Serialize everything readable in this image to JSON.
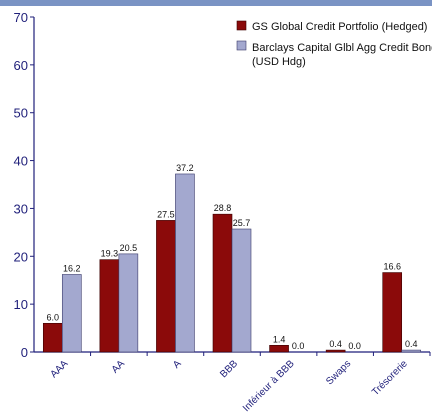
{
  "chart_data": {
    "type": "bar",
    "categories": [
      "AAA",
      "AA",
      "A",
      "BBB",
      "Inférieur à BBB",
      "Swaps",
      "Trésorerie"
    ],
    "series": [
      {
        "name": "GS Global Credit Portfolio (Hedged)",
        "color": "#8b0a0a",
        "values": [
          6.0,
          19.3,
          27.5,
          28.8,
          1.4,
          0.4,
          16.6
        ]
      },
      {
        "name": "Barclays Capital Glbl Agg Credit Bond Index (USD Hdg)",
        "color": "#a3a8cf",
        "values": [
          16.2,
          20.5,
          37.2,
          25.7,
          0.0,
          0.0,
          0.4
        ]
      }
    ],
    "data_labels": [
      [
        "6.0",
        "19.3",
        "27.5",
        "28.8",
        "1.4",
        "0.4",
        "16.6"
      ],
      [
        "16.2",
        "20.5",
        "37.2",
        "25.7",
        "0.0",
        "0.0",
        "0.4"
      ]
    ],
    "yticks": [
      0,
      10,
      20,
      30,
      40,
      50,
      60,
      70
    ],
    "ytick_labels": [
      "0",
      "10",
      "20",
      "30",
      "40",
      "50",
      "60",
      "70"
    ],
    "ylim": [
      0,
      70
    ],
    "legend": {
      "position": "top-right",
      "s1_label": "GS Global Credit Portfolio (Hedged)",
      "s2_line1": "Barclays Capital Glbl Agg Credit Bond Index",
      "s2_line2": "(USD Hdg)"
    },
    "grid": false,
    "title": "",
    "xlabel": "",
    "ylabel": ""
  }
}
